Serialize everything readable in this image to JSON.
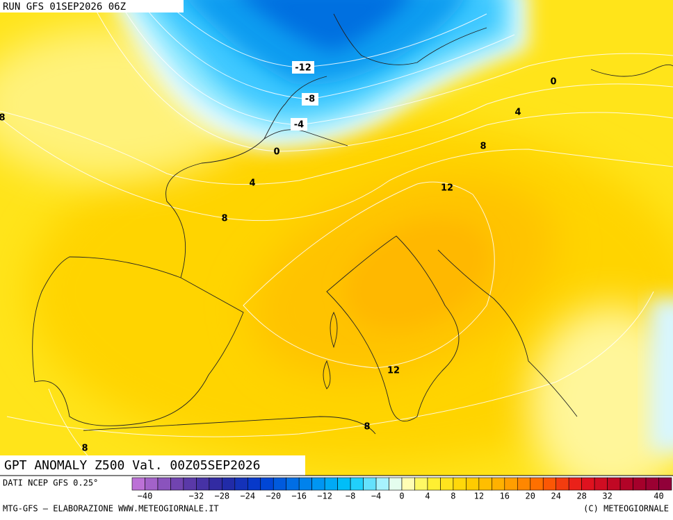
{
  "header": {
    "run": "RUN GFS 01SEP2026 06Z"
  },
  "map": {
    "title": "GPT ANOMALY Z500 Val. 00Z05SEP2026",
    "contour_labels": [
      "-12",
      "-8",
      "-4",
      "0",
      "0",
      "4",
      "4",
      "8",
      "12",
      "8",
      "8",
      "12",
      "8",
      "8"
    ]
  },
  "legend": {
    "source": "DATI NCEP GFS 0.25°",
    "range": [
      -42,
      42
    ],
    "step": 2,
    "ticks": [
      {
        "value": -40,
        "label": "−40"
      },
      {
        "value": -32,
        "label": "−32"
      },
      {
        "value": -28,
        "label": "−28"
      },
      {
        "value": -24,
        "label": "−24"
      },
      {
        "value": -20,
        "label": "−20"
      },
      {
        "value": -16,
        "label": "−16"
      },
      {
        "value": -12,
        "label": "−12"
      },
      {
        "value": -8,
        "label": "−8"
      },
      {
        "value": -4,
        "label": "−4"
      },
      0,
      4,
      8,
      12,
      16,
      20,
      24,
      28,
      32,
      40
    ]
  },
  "footer": {
    "left": "MTG-GFS – ELABORAZIONE WWW.METEOGIORNALE.IT",
    "right": "(C) METEOGIORNALE"
  }
}
